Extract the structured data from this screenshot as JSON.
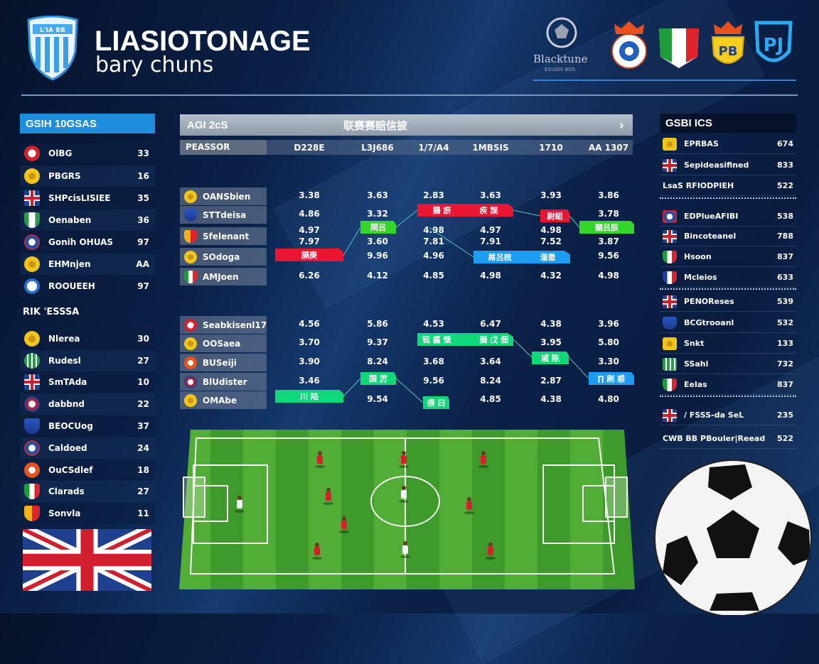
{
  "header": {
    "title": "LIASIOTONAGE",
    "subtitle": "bary chuns",
    "shield_text": "L'IA BB",
    "partner_logo_text": "Blacktune",
    "partner_logo_sub": "EXUOIS BOS",
    "crests": [
      "blue-white-crest-icon",
      "italy-shield-icon",
      "yellow-crown-crest-icon",
      "pj-shield-icon"
    ]
  },
  "left_panel": {
    "title": "GSIH 10GSAS",
    "group1": [
      {
        "icon": "red-white-crest-icon",
        "name": "OlBG",
        "value": "33"
      },
      {
        "icon": "yellow-crest-icon",
        "name": "PBGRS",
        "value": "16"
      },
      {
        "icon": "uk-flag-icon",
        "name": "SHPcisLISIEE",
        "value": "35"
      },
      {
        "icon": "green-white-shield-icon",
        "name": "Oenaben",
        "value": "36"
      },
      {
        "icon": "blue-red-crest-icon",
        "name": "Gonih OHUAS",
        "value": "97"
      },
      {
        "icon": "yellow-crest-icon",
        "name": "EHMnjen",
        "value": "AA"
      },
      {
        "icon": "blue-white-crest-icon",
        "name": "ROOUEEH",
        "value": "97"
      }
    ],
    "section_label": "RIK 'ESSSA",
    "group2": [
      {
        "icon": "yellow-crest-icon",
        "name": "Nlerea",
        "value": "30"
      },
      {
        "icon": "green-stripe-crest-icon",
        "name": "Rudesl",
        "value": "27"
      },
      {
        "icon": "uk-flag-icon",
        "name": "SmTAda",
        "value": "10"
      },
      {
        "icon": "red-blue-crest-icon",
        "name": "dabbnd",
        "value": "22"
      },
      {
        "icon": "blue-shield-icon",
        "name": "BEOCUog",
        "value": "37"
      },
      {
        "icon": "blue-red-crest-icon",
        "name": "Caldoed",
        "value": "24"
      },
      {
        "icon": "orange-crest-icon",
        "name": "OuCSdlef",
        "value": "18"
      },
      {
        "icon": "italy-shield-icon",
        "name": "Clarads",
        "value": "27"
      },
      {
        "icon": "yellow-red-shield-icon",
        "name": "Sonvla",
        "value": "11"
      }
    ],
    "flag": "uk-flag-icon"
  },
  "odds_panel": {
    "title": "AGI 2cS",
    "center_title": "联赛赛赔信披",
    "next_icon": "chevron-right-icon",
    "first_col_header": "PEASSOR",
    "columns": [
      "D228E",
      "L3J686",
      "1/7/A4",
      "1MBSIS",
      "1710",
      "AA 1307"
    ],
    "table1": [
      {
        "icon": "yellow-crest-icon",
        "team": "OANSbien",
        "values": [
          "3.38",
          "3.63",
          "2.83",
          "3.63",
          "3.93",
          "3.86"
        ]
      },
      {
        "icon": "blue-shield-icon",
        "team": "STTdeisa",
        "values": [
          "4.86",
          "3.32",
          "",
          "",
          "",
          "3.78"
        ]
      },
      {
        "icon": "yellow-red-shield-icon",
        "team": "Sfelenant",
        "values": [
          "4.97",
          "",
          "4.98",
          "4.97",
          "4.98",
          ""
        ],
        "values2": [
          "7.97",
          "3.60",
          "7.81",
          "7.91",
          "7.52",
          "3.87"
        ]
      },
      {
        "icon": "yellow-crest-icon",
        "team": "SOdoga",
        "values": [
          "",
          "9.96",
          "4.96",
          "",
          "",
          "9.56"
        ]
      },
      {
        "icon": "italy-shield-icon",
        "team": "AMJoen",
        "values": [
          "6.26",
          "4.12",
          "4.85",
          "4.98",
          "4.32",
          "4.98"
        ]
      }
    ],
    "table1_tags": [
      {
        "color": "red",
        "texts": [
          "腸 瘀",
          "疾 觊"
        ]
      },
      {
        "color": "red",
        "texts": [
          "尉組"
        ]
      },
      {
        "color": "lime",
        "texts": [
          "閑吕"
        ]
      },
      {
        "color": "lime",
        "texts": [
          "關吕朕"
        ]
      },
      {
        "color": "red",
        "texts": [
          "膈庚"
        ]
      },
      {
        "color": "blue",
        "texts": [
          "屌吕梳",
          "溜患"
        ]
      }
    ],
    "table2": [
      {
        "icon": "red-white-crest-icon",
        "team": "Seabkisenl17",
        "values": [
          "4.56",
          "5.86",
          "4.53",
          "6.47",
          "4.38",
          "3.96"
        ]
      },
      {
        "icon": "yellow-crest-icon",
        "team": "OOSaea",
        "values": [
          "3.70",
          "9.37",
          "",
          "",
          "3.95",
          "5.80"
        ]
      },
      {
        "icon": "orange-crest-icon",
        "team": "BUSeiji",
        "values": [
          "3.90",
          "8.24",
          "3.68",
          "3.64",
          "",
          "3.30"
        ]
      },
      {
        "icon": "red-blue-crest-icon",
        "team": "BlUdister",
        "values": [
          "3.46",
          "",
          "9.56",
          "8.24",
          "2.87",
          ""
        ]
      },
      {
        "icon": "yellow-crest-icon",
        "team": "OMAbe",
        "values": [
          "",
          "9.54",
          "",
          "4.85",
          "4.38",
          "4.80"
        ]
      }
    ],
    "table2_tags": [
      {
        "color": "green",
        "texts": [
          "钽 瘟 惬",
          "腼 戊 佃"
        ]
      },
      {
        "color": "green",
        "texts": [
          "戚 陈"
        ]
      },
      {
        "color": "blue",
        "texts": [
          "∏ 刷 惑"
        ]
      },
      {
        "color": "green",
        "texts": [
          "国 厉"
        ]
      },
      {
        "color": "green",
        "texts": [
          "川 陆"
        ]
      },
      {
        "color": "green",
        "texts": [
          "偎 曰"
        ]
      }
    ]
  },
  "right_panel": {
    "title": "GSBI ICS",
    "rows": [
      {
        "icon": "yellow-crest-icon",
        "name": "EPRBAS",
        "value": "674"
      },
      {
        "icon": "uk-flag-icon",
        "name": "Sepideasifined",
        "value": "833"
      },
      {
        "icon": "",
        "name": "LsaS RFIODPIEH",
        "value": "522"
      },
      {
        "icon": "blue-red-crest-icon",
        "name": "EDPlueAFIBI",
        "value": "538"
      },
      {
        "icon": "uk-flag-icon",
        "name": "Bincoteanel",
        "value": "788"
      },
      {
        "icon": "italy-shield-icon",
        "name": "Hsoon",
        "value": "837"
      },
      {
        "icon": "france-shield-icon",
        "name": "Mcleios",
        "value": "633"
      },
      {
        "icon": "uk-flag-icon",
        "name": "PENOReses",
        "value": "539"
      },
      {
        "icon": "blue-shield-icon",
        "name": "BCGtrooanl",
        "value": "532"
      },
      {
        "icon": "yellow-crest-icon",
        "name": "Snkt",
        "value": "133"
      },
      {
        "icon": "green-stripe-crest-icon",
        "name": "SSahl",
        "value": "732"
      },
      {
        "icon": "italy-shield-icon",
        "name": "Eelas",
        "value": "837"
      },
      {
        "icon": "uk-flag-icon",
        "name": "/ FSSS-da SeL",
        "value": "235"
      },
      {
        "icon": "",
        "name": "CWB BB PBouler|Reead",
        "value": "522"
      }
    ]
  },
  "colors": {
    "accent": "#1d8ddc",
    "red_tag": "#ea1433",
    "green_tag": "#10d878",
    "blue_tag": "#1e9cf0",
    "pitch": "#3f9a2c"
  }
}
